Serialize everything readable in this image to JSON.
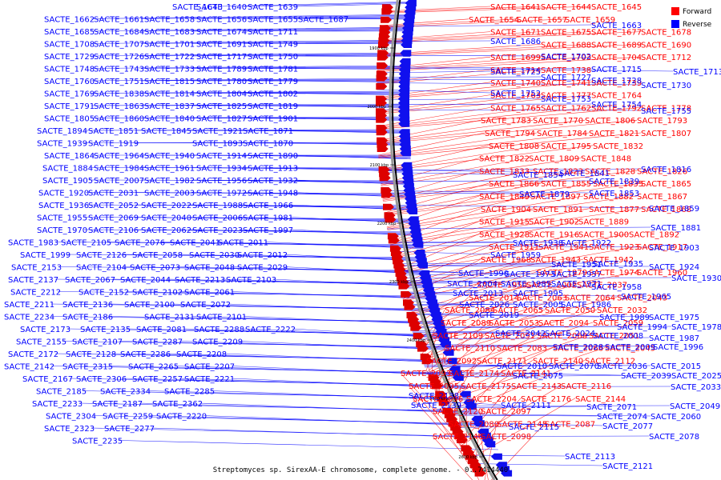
{
  "caption": "Streptomyces sp. SirexAA-E chromosome, complete genome. - 0..7414440",
  "legend": [
    {
      "label": "Forward",
      "color": "#ff0000"
    },
    {
      "label": "Reverse",
      "color": "#0000ff"
    }
  ],
  "ticks": [
    "1900 kbp",
    "2000 kbp",
    "2100 kbp",
    "2200 kbp",
    "2300 kbp",
    "2400 kbp",
    "2500 kbp",
    "2600 kbp"
  ],
  "colors": {
    "forward": "#ff0000",
    "reverse": "#0000ff",
    "forward_arrow": "#dd0000",
    "reverse_arrow": "#1010ee",
    "backbone": "#000000",
    "backbone_shadow": "#999999"
  },
  "left_labels": [
    "SACTE_1643",
    "SACTE_1640",
    "SACTE_1639",
    "SACTE_1662",
    "SACTE_1661",
    "SACTE_1658",
    "SACTE_1656",
    "SACTE_1655",
    "SACTE_1687",
    "SACTE_1685",
    "SACTE_1684",
    "SACTE_1683",
    "SACTE_1674",
    "SACTE_1711",
    "SACTE_1708",
    "SACTE_1707",
    "SACTE_1701",
    "SACTE_1691",
    "SACTE_1749",
    "SACTE_1729",
    "SACTE_1726",
    "SACTE_1722",
    "SACTE_1717",
    "SACTE_1750",
    "SACTE_1748",
    "SACTE_1743",
    "SACTE_1733",
    "SACTE_1789",
    "SACTE_1781",
    "SACTE_1760",
    "SACTE_1751",
    "SACTE_1815",
    "SACTE_1780",
    "SACTE_1779",
    "SACTE_1769",
    "SACTE_1838",
    "SACTE_1814",
    "SACTE_1804",
    "SACTE_1802",
    "SACTE_1791",
    "SACTE_1863",
    "SACTE_1837",
    "SACTE_1825",
    "SACTE_1819",
    "SACTE_1805",
    "SACTE_1860",
    "SACTE_1840",
    "SACTE_1827",
    "SACTE_1901",
    "SACTE_1894",
    "SACTE_1851",
    "SACTE_1845",
    "SACTE_1921",
    "SACTE_1871",
    "SACTE_1939",
    "SACTE_1919",
    "SACTE_1893",
    "SACTE_1870",
    "SACTE_1864",
    "SACTE_1964",
    "SACTE_1940",
    "SACTE_1914",
    "SACTE_1890",
    "SACTE_1884",
    "SACTE_1984",
    "SACTE_1961",
    "SACTE_1934",
    "SACTE_1913",
    "SACTE_1905",
    "SACTE_2007",
    "SACTE_1982",
    "SACTE_1956",
    "SACTE_1932",
    "SACTE_1920",
    "SACTE_2031",
    "SACTE_2003",
    "SACTE_1972",
    "SACTE_1948",
    "SACTE_1936",
    "SACTE_2052",
    "SACTE_2022",
    "SACTE_1988",
    "SACTE_1966",
    "SACTE_1955",
    "SACTE_2069",
    "SACTE_2040",
    "SACTE_2006",
    "SACTE_1981",
    "SACTE_1970",
    "SACTE_2106",
    "SACTE_2062",
    "SACTE_2023",
    "SACTE_1997",
    "SACTE_1983",
    "SACTE_2105",
    "SACTE_2076",
    "SACTE_2041",
    "SACTE_2011",
    "SACTE_1999",
    "SACTE_2126",
    "SACTE_2058",
    "SACTE_2030",
    "SACTE_2012",
    "SACTE_2153",
    "SACTE_2104",
    "SACTE_2073",
    "SACTE_2048",
    "SACTE_2029",
    "SACTE_2137",
    "SACTE_2067",
    "SACTE_2044",
    "SACTE_2213",
    "SACTE_2103",
    "SACTE_2212",
    "SACTE_2152",
    "SACTE_2102",
    "SACTE_2061",
    "SACTE_2211",
    "SACTE_2136",
    "SACTE_2100",
    "SACTE_2072",
    "SACTE_2234",
    "SACTE_2186",
    "SACTE_2131",
    "SACTE_2101",
    "SACTE_2173",
    "SACTE_2135",
    "SACTE_2081",
    "SACTE_2288",
    "SACTE_2222",
    "SACTE_2155",
    "SACTE_2107",
    "SACTE_2287",
    "SACTE_2209",
    "SACTE_2172",
    "SACTE_2128",
    "SACTE_2286",
    "SACTE_2208",
    "SACTE_2142",
    "SACTE_2315",
    "SACTE_2265",
    "SACTE_2207",
    "SACTE_2167",
    "SACTE_2306",
    "SACTE_2257",
    "SACTE_2221",
    "SACTE_2185",
    "SACTE_2334",
    "SACTE_2285",
    "SACTE_2233",
    "SACTE_2187",
    "SACTE_2362",
    "SACTE_2304",
    "SACTE_2259",
    "SACTE_2220",
    "SACTE_2323",
    "SACTE_2277",
    "SACTE_2235",
    "SACTE_2330",
    "SACTE_2284",
    "SACTE_2239",
    "SACTE_2365",
    "SACTE_2313",
    "SACTE_2268",
    "SACTE_2343",
    "SACTE_2292",
    "SACTE_2358",
    "SACTE_2307",
    "SACTE_2331",
    "SACTE_2355"
  ],
  "right_forward_labels": [
    "SACTE_1641",
    "SACTE_1644",
    "SACTE_1645",
    "SACTE_1654",
    "SACTE_1657",
    "SACTE_1659",
    "SACTE_1671",
    "SACTE_1675",
    "SACTE_1677",
    "SACTE_1678",
    "SACTE_1688",
    "SACTE_1689",
    "SACTE_1690",
    "SACTE_1699",
    "SACTE_1703",
    "SACTE_1704",
    "SACTE_1712",
    "SACTE_1714",
    "SACTE_1738",
    "SACTE_1740",
    "SACTE_1741",
    "SACTE_1739",
    "SACTE_1763",
    "SACTE_1777",
    "SACTE_1764",
    "SACTE_1765",
    "SACTE_1762",
    "SACTE_1792",
    "SACTE_1778",
    "SACTE_1783",
    "SACTE_1770",
    "SACTE_1806",
    "SACTE_1793",
    "SACTE_1794",
    "SACTE_1784",
    "SACTE_1821",
    "SACTE_1807",
    "SACTE_1808",
    "SACTE_1795",
    "SACTE_1832",
    "SACTE_1822",
    "SACTE_1809",
    "SACTE_1848",
    "SACTE_1833",
    "SACTE_1823",
    "SACTE_1828",
    "SACTE_1826",
    "SACTE_1866",
    "SACTE_1855",
    "SACTE_1835",
    "SACTE_1865",
    "SACTE_1849",
    "SACTE_1897",
    "SACTE_1882",
    "SACTE_1867",
    "SACTE_1904",
    "SACTE_1891",
    "SACTE_1877",
    "SACTE_1868",
    "SACTE_1915",
    "SACTE_1902",
    "SACTE_1889",
    "SACTE_1928",
    "SACTE_1916",
    "SACTE_1900",
    "SACTE_1892",
    "SACTE_1911",
    "SACTE_1941",
    "SACTE_1923",
    "SACTE_1917",
    "SACTE_1968",
    "SACTE_1943",
    "SACTE_1942",
    "SACTE_1979",
    "SACTE_1974",
    "SACTE_1960",
    "SACTE_1950",
    "SACTE_2002",
    "SACTE_2037",
    "SACTE_2014",
    "SACTE_2063",
    "SACTE_2064",
    "SACTE_2043",
    "SACTE_2084",
    "SACTE_2065",
    "SACTE_2050",
    "SACTE_2032",
    "SACTE_2089",
    "SACTE_2053",
    "SACTE_2094",
    "SACTE_2059",
    "SACTE_2109",
    "SACTE_2091",
    "SACTE_2068",
    "SACTE_2051",
    "SACTE_2110",
    "SACTE_2083",
    "SACTE_2066",
    "SACTE_2045",
    "SACTE_2092",
    "SACTE_2171",
    "SACTE_2140",
    "SACTE_2112",
    "SACTE_2093",
    "SACTE_2174",
    "SACTE_2141",
    "SACTE_2095",
    "SACTE_2175",
    "SACTE_2143",
    "SACTE_2116",
    "SACTE_2096",
    "SACTE_2204",
    "SACTE_2176",
    "SACTE_2144",
    "SACTE_2120",
    "SACTE_2097",
    "SACTE_2080",
    "SACTE_2145",
    "SACTE_2087",
    "SACTE_2146",
    "SACTE_2098"
  ],
  "right_reverse_labels": [
    "SACTE_1663",
    "SACTE_1686",
    "SACTE_1702",
    "SACTE_1715",
    "SACTE_1713",
    "SACTE_1725",
    "SACTE_1727",
    "SACTE_1728",
    "SACTE_1730",
    "SACTE_1752",
    "SACTE_1753",
    "SACTE_1754",
    "SACTE_1755",
    "SACTE_1854",
    "SACTE_1841",
    "SACTE_1816",
    "SACTE_1839",
    "SACTE_1879",
    "SACTE_1853",
    "SACTE_1859",
    "SACTE_1881",
    "SACTE_1938",
    "SACTE_1922",
    "SACTE_1903",
    "SACTE_1959",
    "SACTE_1951",
    "SACTE_1935",
    "SACTE_1924",
    "SACTE_1990",
    "SACTE_1973",
    "SACTE_1957",
    "SACTE_1930",
    "SACTE_2004",
    "SACTE_1985",
    "SACTE_1971",
    "SACTE_1958",
    "SACTE_2013",
    "SACTE_1995",
    "SACTE_1965",
    "SACTE_2026",
    "SACTE_2005",
    "SACTE_1986",
    "SACTE_2019",
    "SACTE_1989",
    "SACTE_1975",
    "SACTE_1994",
    "SACTE_1978",
    "SACTE_2042",
    "SACTE_2024",
    "SACTE_2008",
    "SACTE_1987",
    "SACTE_2028",
    "SACTE_2009",
    "SACTE_1996",
    "SACTE_2010",
    "SACTE_2070",
    "SACTE_2036",
    "SACTE_2015",
    "SACTE_2075",
    "SACTE_2039",
    "SACTE_2025",
    "SACTE_2033",
    "SACTE_2138",
    "SACTE_2139",
    "SACTE_2111",
    "SACTE_2071",
    "SACTE_2049",
    "SACTE_2074",
    "SACTE_2060",
    "SACTE_2077",
    "SACTE_2115",
    "SACTE_2078",
    "SACTE_2113",
    "SACTE_2121"
  ]
}
